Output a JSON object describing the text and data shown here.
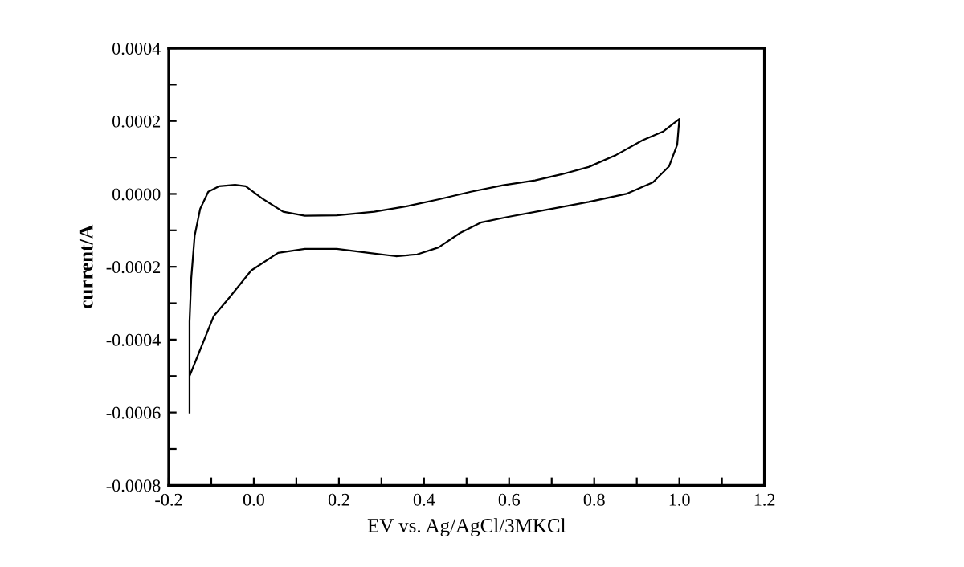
{
  "chart_data": {
    "type": "line",
    "xlabel": "EV vs. Ag/AgCl/3MKCl",
    "ylabel": "current/A",
    "xlim": [
      -0.2,
      1.2
    ],
    "ylim": [
      -0.0008,
      0.0004
    ],
    "xticks": [
      {
        "value": -0.2,
        "label": "-0.2"
      },
      {
        "value": -0.1,
        "label": null
      },
      {
        "value": 0.0,
        "label": "0.0"
      },
      {
        "value": 0.1,
        "label": null
      },
      {
        "value": 0.2,
        "label": "0.2"
      },
      {
        "value": 0.3,
        "label": null
      },
      {
        "value": 0.4,
        "label": "0.4"
      },
      {
        "value": 0.5,
        "label": null
      },
      {
        "value": 0.6,
        "label": "0.6"
      },
      {
        "value": 0.7,
        "label": null
      },
      {
        "value": 0.8,
        "label": "0.8"
      },
      {
        "value": 0.9,
        "label": null
      },
      {
        "value": 1.0,
        "label": "1.0"
      },
      {
        "value": 1.1,
        "label": null
      },
      {
        "value": 1.2,
        "label": "1.2"
      }
    ],
    "yticks": [
      {
        "value": -0.0008,
        "label": "-0.0008"
      },
      {
        "value": -0.0007,
        "label": null
      },
      {
        "value": -0.0006,
        "label": "-0.0006"
      },
      {
        "value": -0.0005,
        "label": null
      },
      {
        "value": -0.0004,
        "label": "-0.0004"
      },
      {
        "value": -0.0003,
        "label": null
      },
      {
        "value": -0.0002,
        "label": "-0.0002"
      },
      {
        "value": -0.0001,
        "label": null
      },
      {
        "value": 0.0,
        "label": "0.0000"
      },
      {
        "value": 0.0001,
        "label": null
      },
      {
        "value": 0.0002,
        "label": "0.0002"
      },
      {
        "value": 0.0003,
        "label": null
      },
      {
        "value": 0.0004,
        "label": "0.0004"
      }
    ],
    "grid": false,
    "marker": "none",
    "line_style": "solid",
    "series": [
      {
        "color": "#000000",
        "x": [
          -0.151,
          -0.151,
          -0.094,
          -0.057,
          -0.006,
          0.057,
          0.12,
          0.195,
          0.27,
          0.334,
          0.384,
          0.434,
          0.485,
          0.535,
          0.598,
          0.686,
          0.787,
          0.875,
          0.938,
          0.976,
          0.995,
          1.0,
          0.963,
          0.913,
          0.85,
          0.787,
          0.724,
          0.661,
          0.586,
          0.51,
          0.434,
          0.359,
          0.283,
          0.195,
          0.12,
          0.069,
          0.019,
          -0.019,
          -0.044,
          -0.082,
          -0.107,
          -0.126,
          -0.139,
          -0.147,
          -0.151,
          -0.151
        ],
        "values": [
          -0.0006,
          -0.0005,
          -0.000335,
          -0.000284,
          -0.00021,
          -0.000162,
          -0.000151,
          -0.000151,
          -0.000162,
          -0.000171,
          -0.000166,
          -0.000147,
          -0.000107,
          -7.8e-05,
          -6.3e-05,
          -4.4e-05,
          -2.2e-05,
          0.0,
          3.2e-05,
          7.6e-05,
          0.000135,
          0.000206,
          0.000172,
          0.000147,
          0.000106,
          7.4e-05,
          5.4e-05,
          3.7e-05,
          2.4e-05,
          6e-06,
          -1.5e-05,
          -3.4e-05,
          -4.9e-05,
          -5.9e-05,
          -6e-05,
          -4.9e-05,
          -1.2e-05,
          2.1e-05,
          2.5e-05,
          2.1e-05,
          6e-06,
          -4.1e-05,
          -0.000115,
          -0.000232,
          -0.00035,
          -0.0005
        ]
      }
    ]
  }
}
